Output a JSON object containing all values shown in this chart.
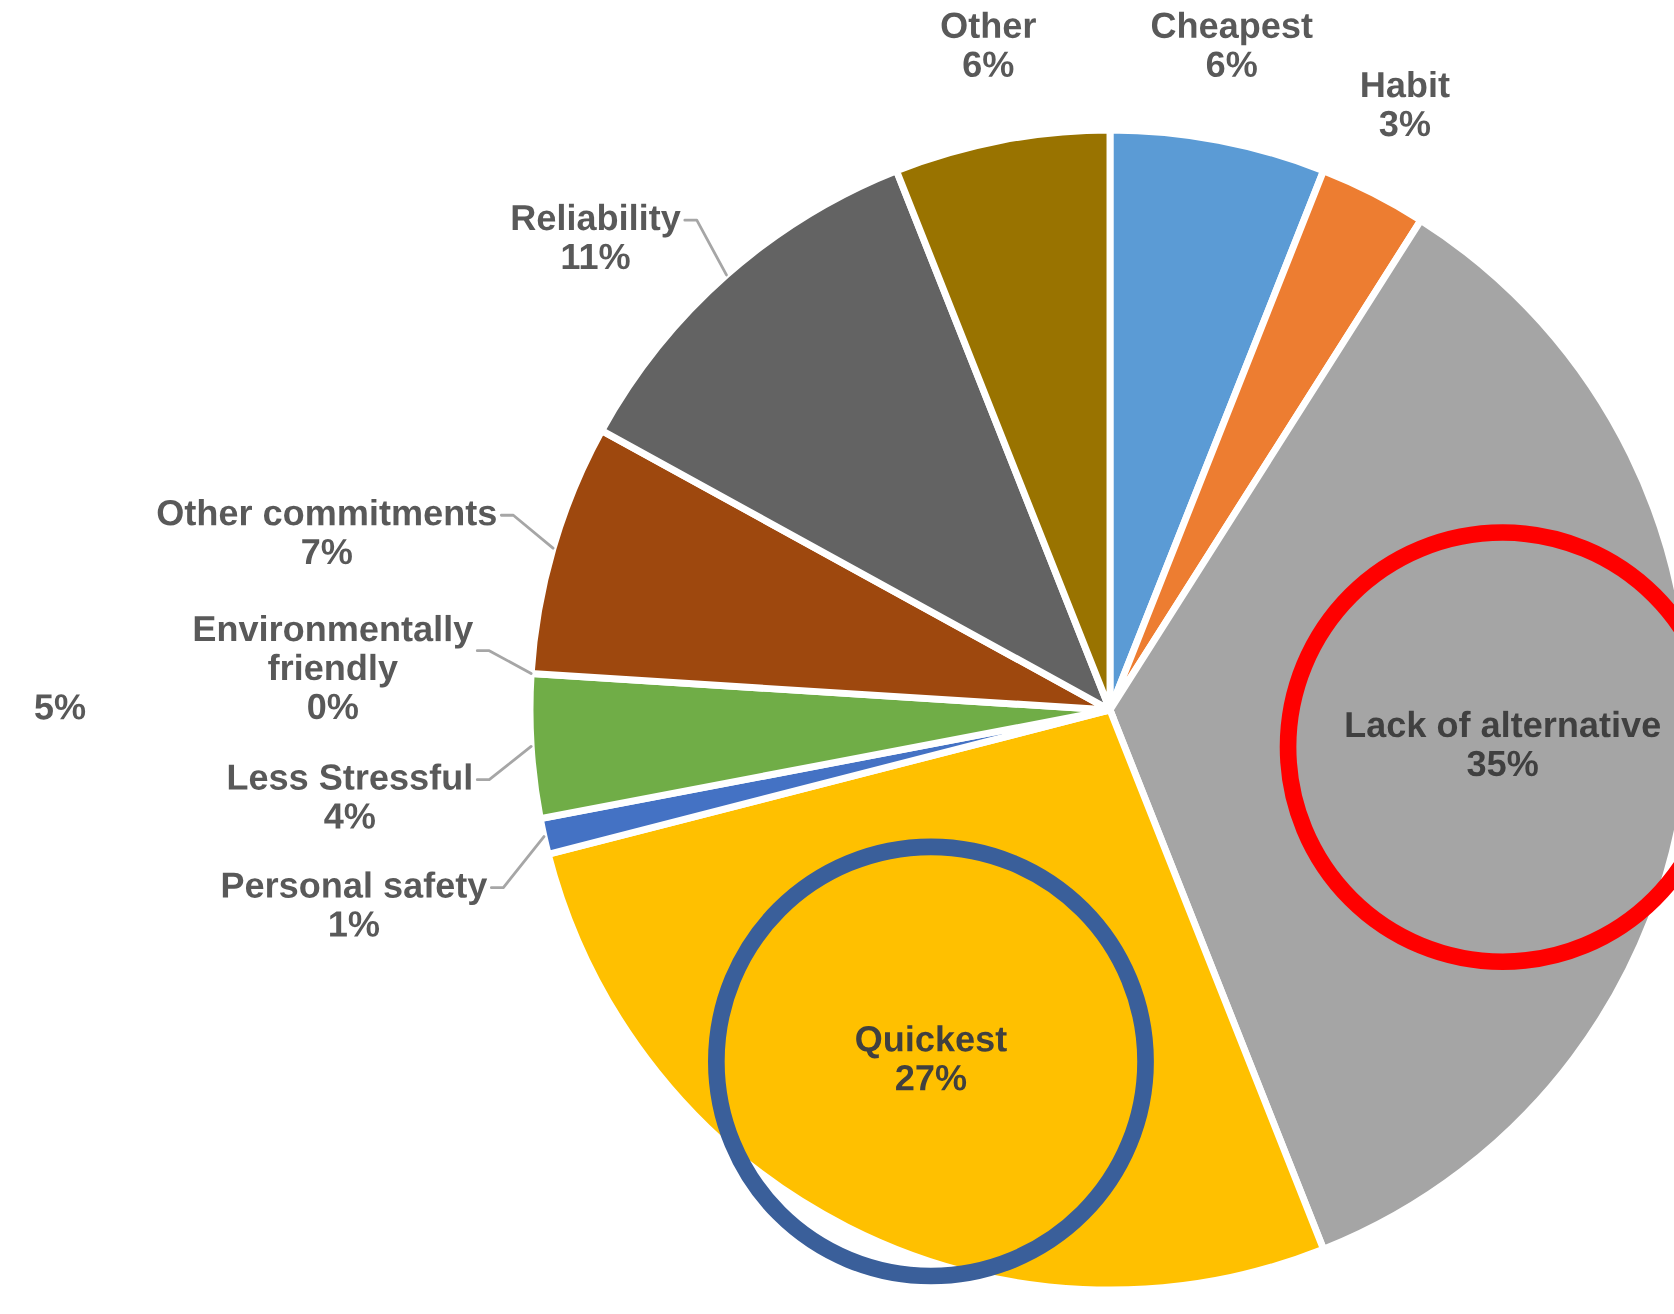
{
  "chart_data": {
    "type": "pie",
    "categories": [
      "Cheapest",
      "Habit",
      "Lack of alternative",
      "Quickest",
      "Personal safety",
      "Less Stressful",
      "Environmentally friendly",
      "Other commitments",
      "Reliability",
      "Other"
    ],
    "values": [
      6,
      3,
      35,
      27,
      1,
      4,
      0,
      7,
      11,
      6
    ],
    "value_labels": [
      "6%",
      "3%",
      "35%",
      "27%",
      "1%",
      "4%",
      "0%",
      "7%",
      "11%",
      "6%"
    ],
    "colors": [
      "#5b9bd5",
      "#ed7d31",
      "#a5a5a5",
      "#ffc000",
      "#4472c4",
      "#70ad47",
      "#255e91",
      "#9e480e",
      "#636363",
      "#997300"
    ],
    "annotations": [
      "5%"
    ]
  }
}
